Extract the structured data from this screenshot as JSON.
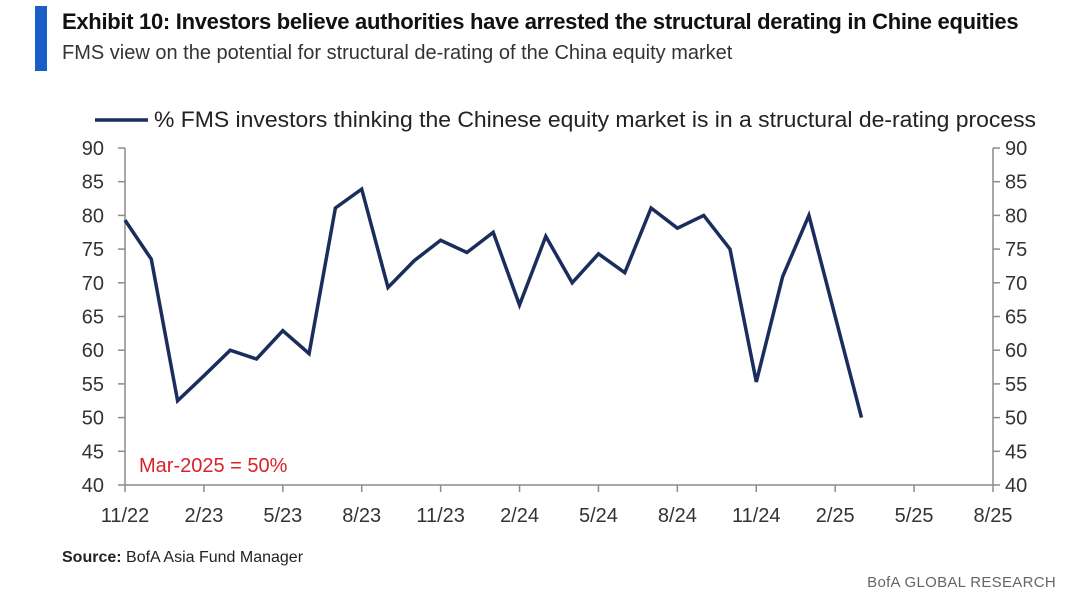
{
  "header": {
    "title": "Exhibit 10: Investors believe authorities have arrested the structural derating in Chine equities",
    "subtitle": "FMS view on the potential for structural de-rating of the China equity market",
    "accent_color": "#1a5fc8"
  },
  "chart_data": {
    "type": "line",
    "title": "",
    "xlabel": "",
    "ylabel": "",
    "ylim": [
      40,
      90
    ],
    "yticks": [
      40,
      45,
      50,
      55,
      60,
      65,
      70,
      75,
      80,
      85,
      90
    ],
    "xlim": [
      "2022-11",
      "2025-08"
    ],
    "xtick_labels": [
      "11/22",
      "2/23",
      "5/23",
      "8/23",
      "11/23",
      "2/24",
      "5/24",
      "8/24",
      "11/24",
      "2/25",
      "5/25",
      "8/25"
    ],
    "legend_position": "top",
    "grid": false,
    "annotation": {
      "text": "Mar-2025 = 50%",
      "color": "#d9232a"
    },
    "series": [
      {
        "name": "% FMS investors thinking the Chinese equity market is in a structural de-rating process",
        "color": "#1b2d5c",
        "x": [
          "2022-11",
          "2022-12",
          "2023-01",
          "2023-02",
          "2023-03",
          "2023-04",
          "2023-05",
          "2023-06",
          "2023-07",
          "2023-08",
          "2023-09",
          "2023-10",
          "2023-11",
          "2023-12",
          "2024-01",
          "2024-02",
          "2024-03",
          "2024-04",
          "2024-05",
          "2024-06",
          "2024-07",
          "2024-08",
          "2024-09",
          "2024-10",
          "2024-11",
          "2024-12",
          "2025-01",
          "2025-02",
          "2025-03"
        ],
        "values": [
          79.3,
          73.5,
          52.5,
          56.2,
          60.0,
          58.7,
          62.9,
          59.5,
          81.1,
          83.9,
          69.3,
          73.3,
          76.3,
          74.5,
          77.5,
          66.7,
          76.9,
          70.0,
          74.3,
          71.5,
          81.1,
          78.1,
          80.0,
          75.0,
          55.3,
          70.9,
          80.0,
          65.0,
          50.0
        ]
      }
    ]
  },
  "source": {
    "label": "Source:",
    "text": "BofA Asia Fund Manager"
  },
  "footer": {
    "brand": "BofA GLOBAL RESEARCH"
  }
}
